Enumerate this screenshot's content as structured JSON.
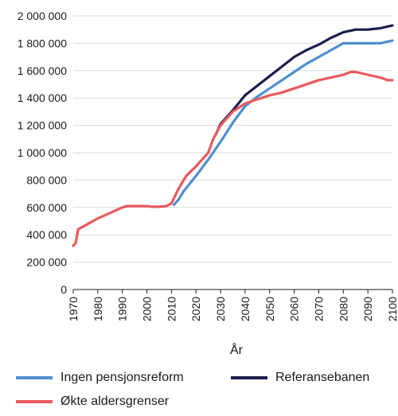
{
  "chart_data": {
    "type": "line",
    "title": "",
    "xlabel": "År",
    "ylabel": "",
    "xlim": [
      1970,
      2100
    ],
    "ylim": [
      0,
      2000000
    ],
    "x_ticks": [
      1970,
      1980,
      1990,
      2000,
      2010,
      2020,
      2030,
      2040,
      2050,
      2060,
      2070,
      2080,
      2090,
      2100
    ],
    "y_ticks": [
      0,
      200000,
      400000,
      600000,
      800000,
      1000000,
      1200000,
      1400000,
      1600000,
      1800000,
      2000000
    ],
    "y_tick_labels": [
      "0",
      "200 000",
      "400 000",
      "600 000",
      "800 000",
      "1 000 000",
      "1 200 000",
      "1 400 000",
      "1 600 000",
      "1 800 000",
      "2 000 000"
    ],
    "grid": "horizontal",
    "legend_position": "bottom",
    "series": [
      {
        "name": "Ingen pensjonsreform",
        "color": "#4f8fcf",
        "points": [
          [
            2011,
            620000
          ],
          [
            2013,
            660000
          ],
          [
            2015,
            720000
          ],
          [
            2020,
            830000
          ],
          [
            2025,
            950000
          ],
          [
            2030,
            1080000
          ],
          [
            2035,
            1220000
          ],
          [
            2040,
            1340000
          ],
          [
            2045,
            1410000
          ],
          [
            2050,
            1470000
          ],
          [
            2055,
            1530000
          ],
          [
            2060,
            1590000
          ],
          [
            2065,
            1650000
          ],
          [
            2070,
            1700000
          ],
          [
            2075,
            1750000
          ],
          [
            2080,
            1800000
          ],
          [
            2085,
            1800000
          ],
          [
            2090,
            1800000
          ],
          [
            2095,
            1800000
          ],
          [
            2100,
            1820000
          ]
        ]
      },
      {
        "name": "Referansebanen",
        "color": "#1b1d4d",
        "points": [
          [
            2028,
            1130000
          ],
          [
            2030,
            1210000
          ],
          [
            2035,
            1310000
          ],
          [
            2040,
            1420000
          ],
          [
            2045,
            1490000
          ],
          [
            2050,
            1560000
          ],
          [
            2055,
            1630000
          ],
          [
            2060,
            1700000
          ],
          [
            2065,
            1750000
          ],
          [
            2070,
            1790000
          ],
          [
            2075,
            1840000
          ],
          [
            2080,
            1880000
          ],
          [
            2085,
            1900000
          ],
          [
            2090,
            1900000
          ],
          [
            2095,
            1910000
          ],
          [
            2100,
            1930000
          ]
        ]
      },
      {
        "name": "Økte aldersgrenser",
        "color": "#e95a5c",
        "points": [
          [
            1970,
            320000
          ],
          [
            1971,
            340000
          ],
          [
            1972,
            440000
          ],
          [
            1975,
            470000
          ],
          [
            1980,
            520000
          ],
          [
            1985,
            560000
          ],
          [
            1990,
            600000
          ],
          [
            1992,
            610000
          ],
          [
            1995,
            610000
          ],
          [
            2000,
            610000
          ],
          [
            2002,
            605000
          ],
          [
            2005,
            605000
          ],
          [
            2008,
            610000
          ],
          [
            2010,
            630000
          ],
          [
            2013,
            740000
          ],
          [
            2016,
            830000
          ],
          [
            2020,
            900000
          ],
          [
            2025,
            1000000
          ],
          [
            2027,
            1100000
          ],
          [
            2030,
            1200000
          ],
          [
            2035,
            1300000
          ],
          [
            2040,
            1360000
          ],
          [
            2045,
            1390000
          ],
          [
            2050,
            1420000
          ],
          [
            2055,
            1440000
          ],
          [
            2060,
            1470000
          ],
          [
            2065,
            1500000
          ],
          [
            2070,
            1530000
          ],
          [
            2075,
            1550000
          ],
          [
            2080,
            1570000
          ],
          [
            2083,
            1590000
          ],
          [
            2085,
            1590000
          ],
          [
            2090,
            1570000
          ],
          [
            2095,
            1550000
          ],
          [
            2098,
            1530000
          ],
          [
            2100,
            1530000
          ]
        ]
      }
    ]
  }
}
